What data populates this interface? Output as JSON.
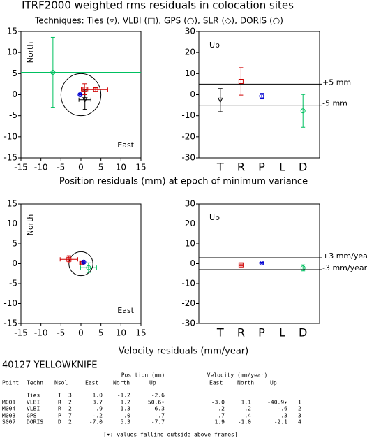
{
  "title": "ITRF2000 weighted rms residuals in colocation sites",
  "legend": {
    "prefix": "Techniques:",
    "items": [
      {
        "name": "Ties",
        "symbol": "(▿),",
        "color": "#000000"
      },
      {
        "name": "VLBI",
        "symbol": "(□),",
        "color": "#d00000"
      },
      {
        "name": "GPS",
        "symbol": "(○),",
        "color": "#0000d0"
      },
      {
        "name": "SLR",
        "symbol": "(◇),",
        "color": "#b05a00"
      },
      {
        "name": "DORIS",
        "symbol": "(○)",
        "color": "#00c060"
      }
    ]
  },
  "captions": [
    "Position residuals (mm) at epoch of minimum variance",
    "Velocity residuals (mm/year)"
  ],
  "chart_data": [
    {
      "type": "scatter",
      "corner_labels": [
        "North",
        "East"
      ],
      "xlim": [
        -15,
        15
      ],
      "ylim": [
        -15,
        15
      ],
      "xticks": [
        -15,
        -10,
        -5,
        0,
        5,
        10,
        15
      ],
      "yticks": [
        -15,
        -10,
        -5,
        0,
        5,
        10,
        15
      ],
      "circle": {
        "x": 0,
        "y": 0,
        "r": 5
      },
      "series": [
        {
          "color": "#000000",
          "marker": "triangle",
          "x": [
            1.0
          ],
          "y": [
            -1.2
          ],
          "xerr": [
            1.5
          ],
          "yerr": [
            2.3
          ]
        },
        {
          "color": "#d00000",
          "marker": "square",
          "x": [
            3.7,
            0.9
          ],
          "y": [
            1.2,
            1.3
          ],
          "xerr": [
            3.0,
            0.8
          ],
          "yerr": [
            0.4,
            1.3
          ]
        },
        {
          "color": "#0000d0",
          "marker": "circle",
          "x": [
            -0.2
          ],
          "y": [
            0.0
          ],
          "xerr": [
            0.3
          ],
          "yerr": [
            0.3
          ]
        },
        {
          "color": "#00c060",
          "marker": "circle",
          "x": [
            -7.0
          ],
          "y": [
            5.3
          ],
          "xerr": [
            30
          ],
          "yerr": [
            8.3
          ]
        }
      ]
    },
    {
      "type": "category",
      "corner_label": "Up",
      "categories": [
        "T",
        "R",
        "P",
        "L",
        "D"
      ],
      "colors": [
        "#000000",
        "#d00000",
        "#0000d0",
        "#b05a00",
        "#00c060"
      ],
      "markers": [
        "triangle",
        "square",
        "circle",
        "diamond",
        "circle"
      ],
      "values": [
        -2.6,
        6.3,
        -0.7,
        null,
        -7.7
      ],
      "errors": [
        5.5,
        6.5,
        1.3,
        null,
        7.8
      ],
      "ylim": [
        -30,
        30
      ],
      "yticks": [
        -30,
        -20,
        -10,
        0,
        10,
        20,
        30
      ],
      "hlines": [
        {
          "value": 5,
          "label": "+5 mm"
        },
        {
          "value": -5,
          "label": "-5 mm"
        }
      ]
    },
    {
      "type": "scatter",
      "corner_labels": [
        "North",
        "East"
      ],
      "xlim": [
        -15,
        15
      ],
      "ylim": [
        -15,
        15
      ],
      "xticks": [
        -15,
        -10,
        -5,
        0,
        5,
        10,
        15
      ],
      "yticks": [
        -15,
        -10,
        -5,
        0,
        5,
        10,
        15
      ],
      "circle": {
        "x": 0,
        "y": 0,
        "r": 3
      },
      "series": [
        {
          "color": "#d00000",
          "marker": "square",
          "x": [
            -3.0,
            0.2
          ],
          "y": [
            1.1,
            0.2
          ],
          "xerr": [
            2.2,
            0.3
          ],
          "yerr": [
            0.9,
            0.3
          ]
        },
        {
          "color": "#0000d0",
          "marker": "circle",
          "x": [
            0.7
          ],
          "y": [
            0.4
          ],
          "xerr": [
            0.3
          ],
          "yerr": [
            0.3
          ]
        },
        {
          "color": "#00c060",
          "marker": "circle",
          "x": [
            1.9
          ],
          "y": [
            -1.0
          ],
          "xerr": [
            2.0
          ],
          "yerr": [
            1.2
          ]
        }
      ]
    },
    {
      "type": "category",
      "corner_label": "Up",
      "categories": [
        "T",
        "R",
        "P",
        "L",
        "D"
      ],
      "colors": [
        "#000000",
        "#d00000",
        "#0000d0",
        "#b05a00",
        "#00c060"
      ],
      "markers": [
        "triangle",
        "square",
        "circle",
        "diamond",
        "circle"
      ],
      "values": [
        null,
        -0.6,
        0.3,
        null,
        -2.1
      ],
      "errors": [
        null,
        0.4,
        0.4,
        null,
        1.5
      ],
      "ylim": [
        -30,
        30
      ],
      "yticks": [
        -30,
        -20,
        -10,
        0,
        10,
        20,
        30
      ],
      "hlines": [
        {
          "value": 3,
          "label": "+3 mm/year"
        },
        {
          "value": -3,
          "label": "-3 mm/year"
        }
      ]
    }
  ],
  "table": {
    "site": "40127 YELLOWKNIFE",
    "group_headers": [
      "Position (mm)",
      "Velocity (mm/year)"
    ],
    "headers": [
      "Point",
      "Techn.",
      "Nsol",
      "East",
      "North",
      "Up",
      "East",
      "North",
      "Up"
    ],
    "rows": [
      {
        "techn": "Ties",
        "code": "T",
        "nsol": "3",
        "pe": "1.0",
        "pn": "-1.2",
        "pu": "-2.6"
      },
      {
        "point": "M001",
        "techn": "VLBI",
        "code": "R",
        "nsol": "2",
        "pe": "3.7",
        "pn": "1.2",
        "pu": "50.6▾",
        "ve": "-3.0",
        "vn": "1.1",
        "vu": "-40.9▾",
        "idx": "1"
      },
      {
        "point": "M004",
        "techn": "VLBI",
        "code": "R",
        "nsol": "2",
        "pe": ".9",
        "pn": "1.3",
        "pu": "6.3",
        "ve": ".2",
        "vn": ".2",
        "vu": "-.6",
        "idx": "2"
      },
      {
        "point": "M003",
        "techn": "GPS",
        "code": "P",
        "nsol": "7",
        "pe": "-.2",
        "pn": ".0",
        "pu": "-.7",
        "ve": ".7",
        "vn": ".4",
        "vu": ".3",
        "idx": "3"
      },
      {
        "point": "S007",
        "techn": "DORIS",
        "code": "D",
        "nsol": "2",
        "pe": "-7.0",
        "pn": "5.3",
        "pu": "-7.7",
        "ve": "1.9",
        "vn": "-1.0",
        "vu": "-2.1",
        "idx": "4"
      }
    ],
    "footnote": "[▾: values falling outside above frames]"
  }
}
